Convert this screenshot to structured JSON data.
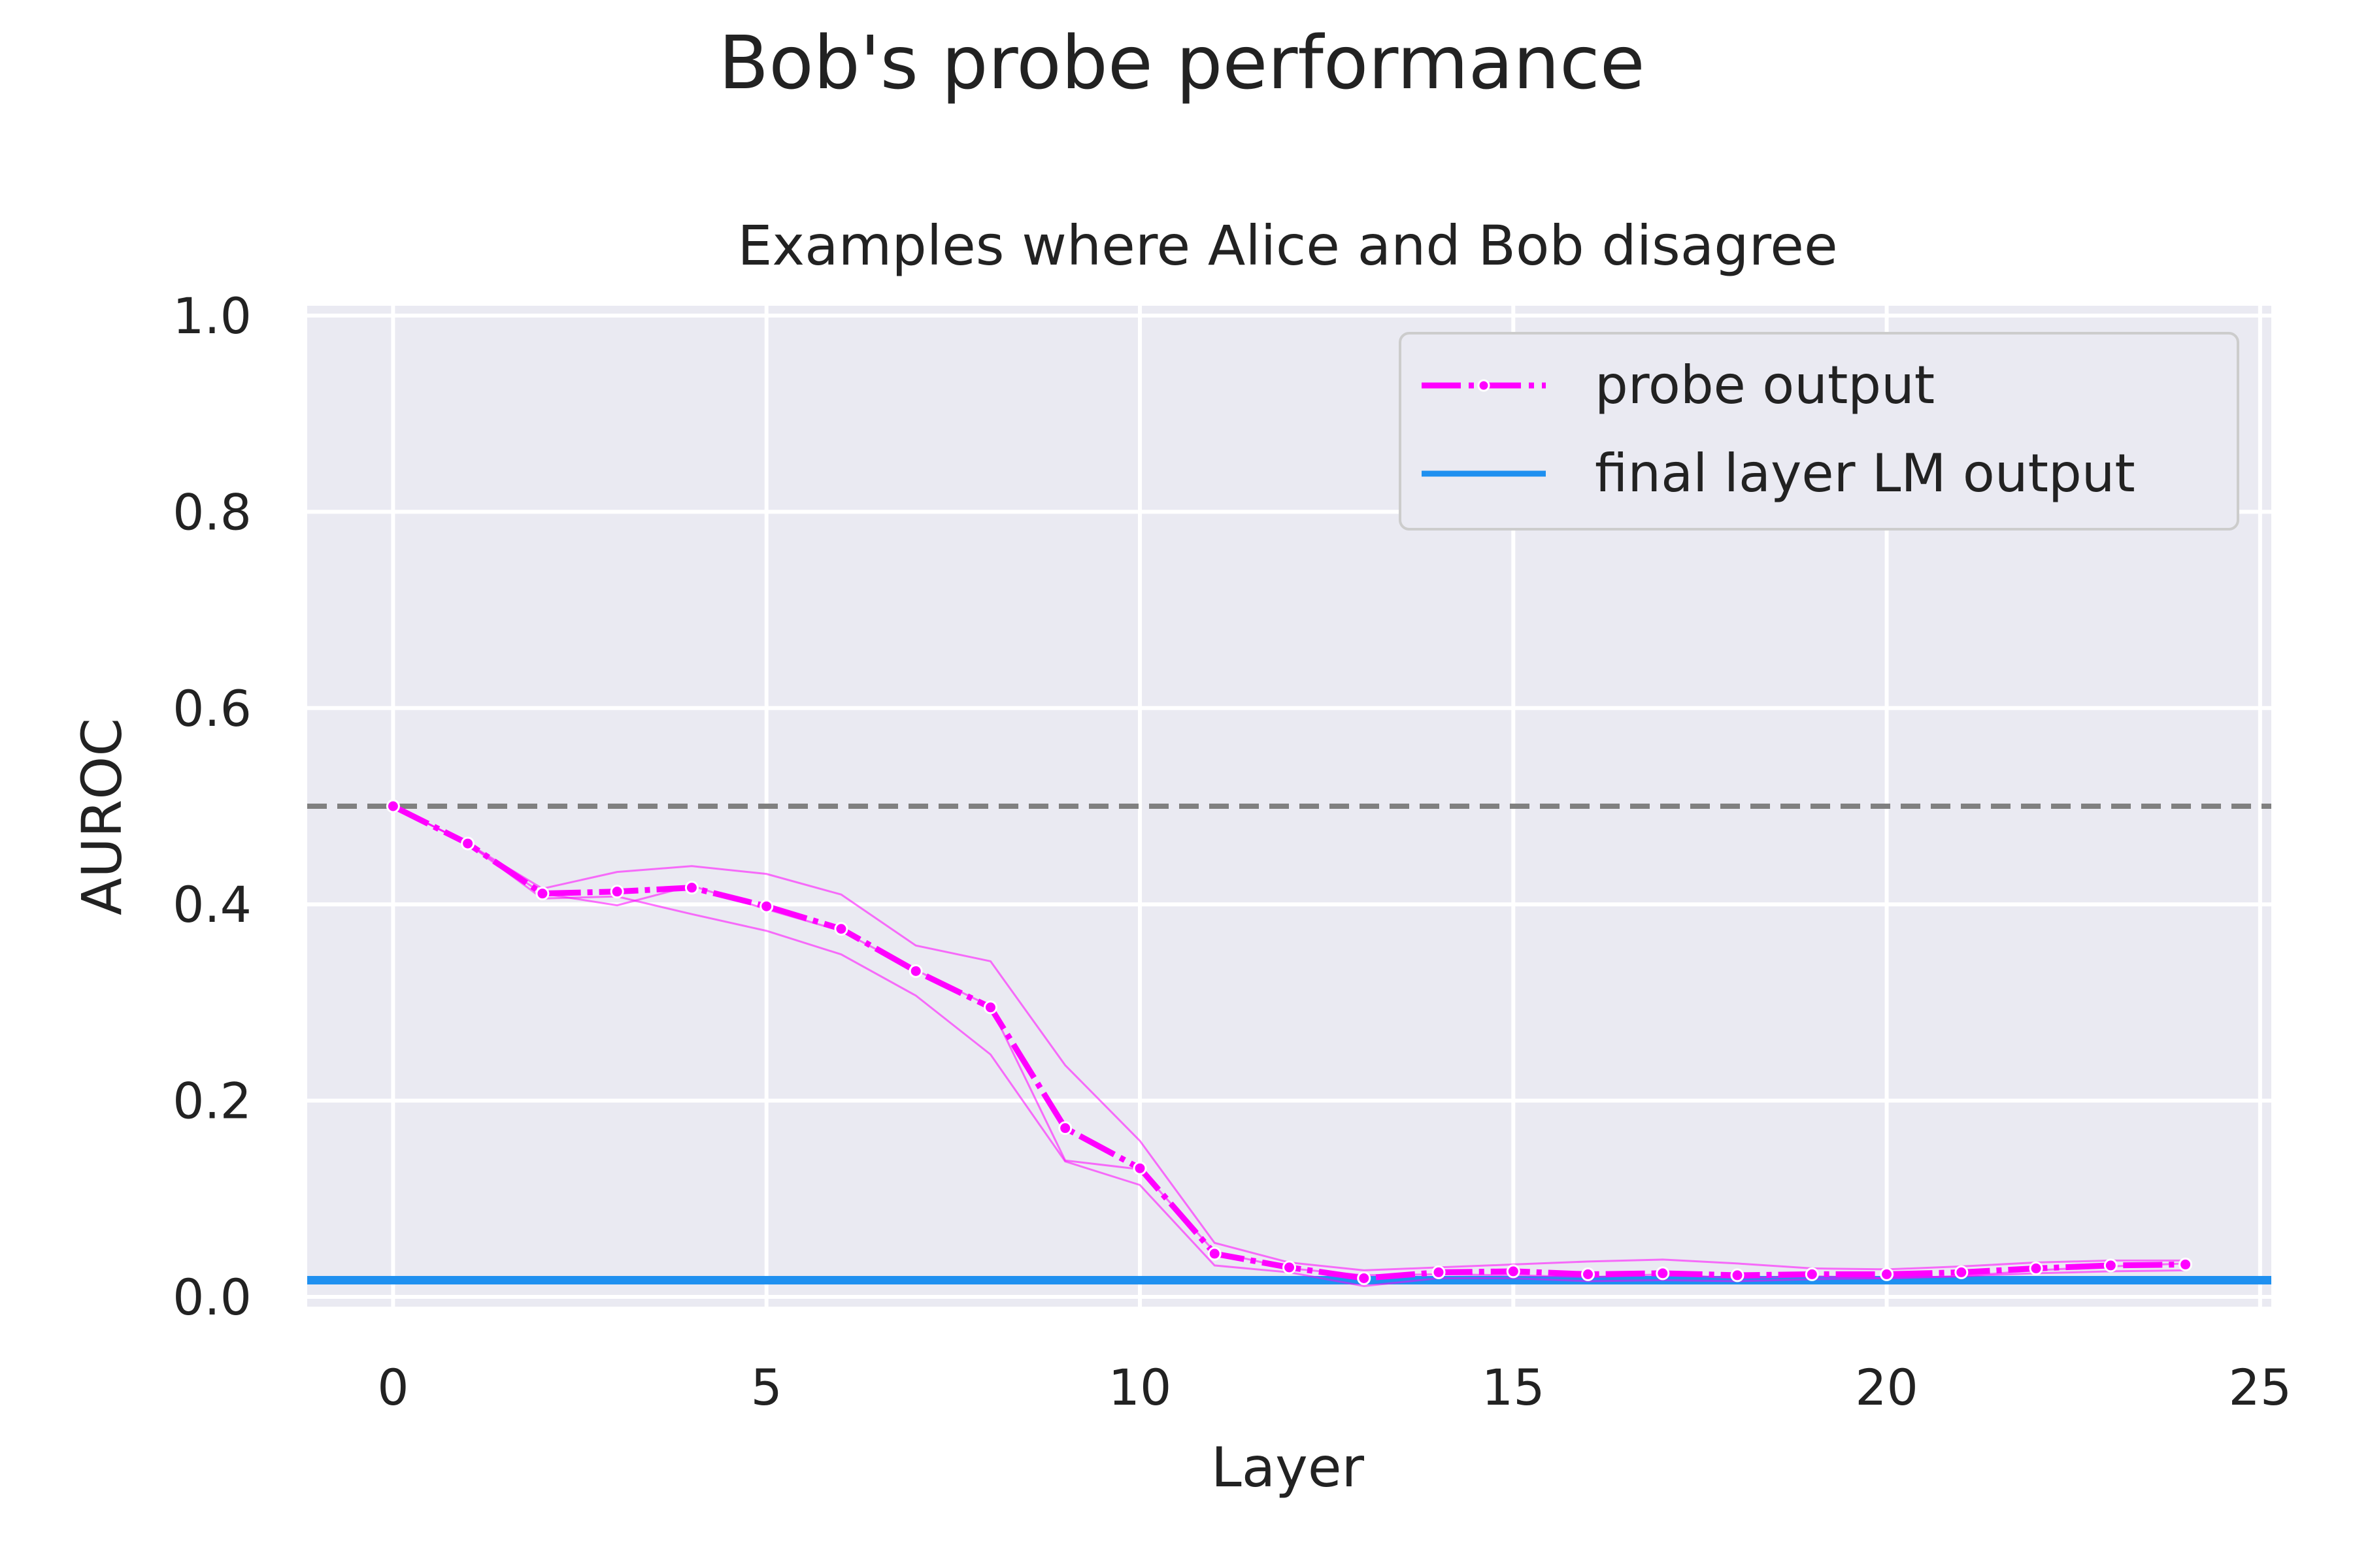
{
  "chart_data": {
    "type": "line",
    "title": "Bob's probe performance",
    "subtitle": "Examples where Alice and Bob disagree",
    "xlabel": "Layer",
    "ylabel": "AUROC",
    "xlim": [
      -1.15,
      25.15
    ],
    "ylim": [
      -0.01,
      1.01
    ],
    "xticks": [
      0,
      5,
      10,
      15,
      20,
      25
    ],
    "yticks": [
      0.0,
      0.2,
      0.4,
      0.6,
      0.8,
      1.0
    ],
    "xtick_labels": [
      "0",
      "5",
      "10",
      "15",
      "20",
      "25"
    ],
    "ytick_labels": [
      "0.0",
      "0.2",
      "0.4",
      "0.6",
      "0.8",
      "1.0"
    ],
    "grid": true,
    "legend_position": "top-right",
    "reference_line": {
      "y": 0.5,
      "style": "dashed",
      "color": "#808080"
    },
    "series": [
      {
        "name": "probe output",
        "color": "#ff00ff",
        "style": "dash-dot with point markers",
        "x": [
          0,
          1,
          2,
          3,
          4,
          5,
          6,
          7,
          8,
          9,
          10,
          11,
          12,
          13,
          14,
          15,
          16,
          17,
          18,
          19,
          20,
          21,
          22,
          23,
          24
        ],
        "y": [
          0.5,
          0.462,
          0.411,
          0.413,
          0.417,
          0.398,
          0.375,
          0.332,
          0.295,
          0.172,
          0.131,
          0.044,
          0.03,
          0.019,
          0.025,
          0.026,
          0.023,
          0.024,
          0.022,
          0.023,
          0.023,
          0.025,
          0.029,
          0.032,
          0.033
        ],
        "runs": [
          [
            0.5,
            0.462,
            0.416,
            0.433,
            0.439,
            0.431,
            0.41,
            0.358,
            0.342,
            0.236,
            0.159,
            0.055,
            0.035,
            0.027,
            0.03,
            0.033,
            0.036,
            0.038,
            0.034,
            0.029,
            0.028,
            0.031,
            0.035,
            0.037,
            0.037
          ],
          [
            0.5,
            0.462,
            0.411,
            0.399,
            0.419,
            0.395,
            0.373,
            0.333,
            0.296,
            0.139,
            0.13,
            0.046,
            0.029,
            0.022,
            0.023,
            0.022,
            0.02,
            0.023,
            0.019,
            0.021,
            0.019,
            0.021,
            0.027,
            0.031,
            0.034
          ],
          [
            0.5,
            0.462,
            0.406,
            0.408,
            0.39,
            0.373,
            0.349,
            0.307,
            0.247,
            0.138,
            0.114,
            0.032,
            0.025,
            0.011,
            0.019,
            0.019,
            0.016,
            0.017,
            0.016,
            0.018,
            0.019,
            0.021,
            0.024,
            0.026,
            0.027
          ]
        ]
      },
      {
        "name": "final layer LM output",
        "color": "#1f90f0",
        "style": "solid horizontal line",
        "y_constant": 0.017
      }
    ]
  }
}
